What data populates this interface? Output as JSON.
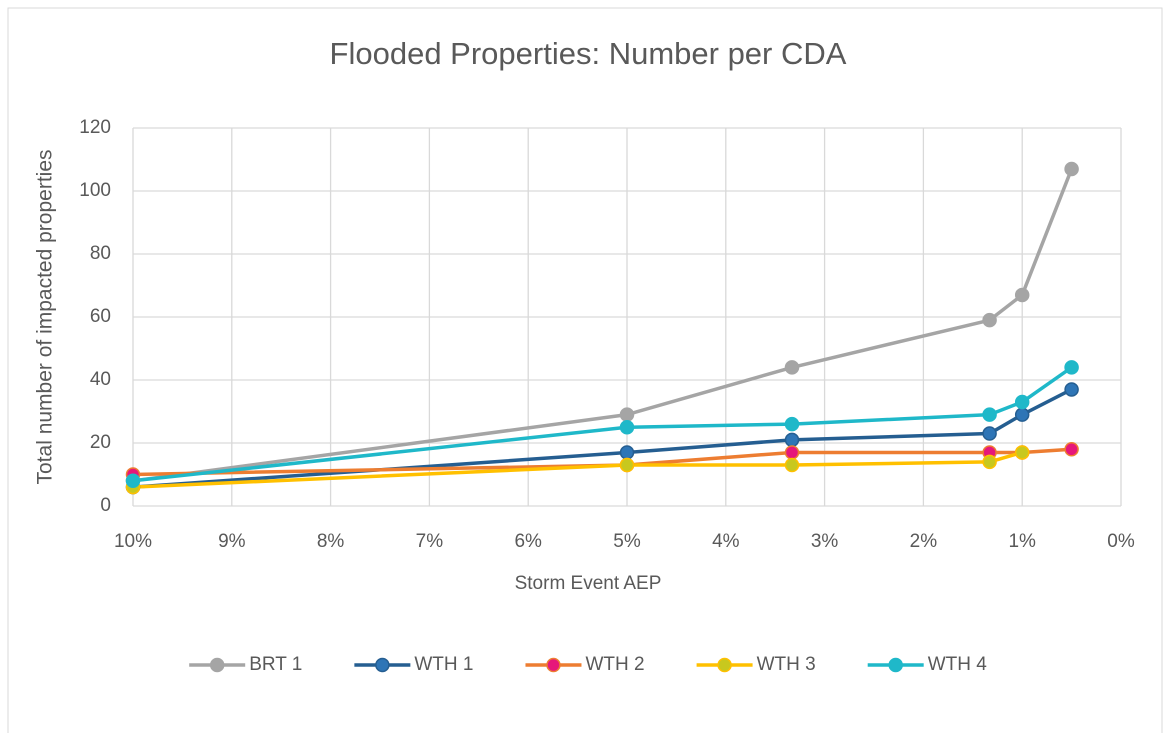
{
  "chart_data": {
    "type": "line",
    "title": "Flooded Properties: Number per CDA",
    "x_label": "Storm Event AEP",
    "y_label": "Total number of impacted properties",
    "x": [
      10,
      5,
      3.33,
      1.33,
      1,
      0.5
    ],
    "series": [
      {
        "name": "BRT 1",
        "color": "#a5a5a5",
        "marker_color": "#a5a5a5",
        "values": [
          8,
          29,
          44,
          59,
          67,
          107
        ]
      },
      {
        "name": "WTH 1",
        "color": "#255e91",
        "marker_color": "#2e75b6",
        "values": [
          6,
          17,
          21,
          23,
          29,
          37
        ]
      },
      {
        "name": "WTH 2",
        "color": "#ed7d31",
        "marker_color": "#e6177a",
        "values": [
          10,
          13,
          17,
          17,
          17,
          18
        ]
      },
      {
        "name": "WTH 3",
        "color": "#ffc000",
        "marker_color": "#c8c81e",
        "values": [
          6,
          13,
          13,
          14,
          17,
          null
        ]
      },
      {
        "name": "WTH 4",
        "color": "#1fb8c9",
        "marker_color": "#1fb8c9",
        "values": [
          8,
          25,
          26,
          29,
          33,
          44
        ]
      }
    ],
    "xlim": [
      10,
      0
    ],
    "xticks": [
      {
        "value": 10,
        "label": "10%"
      },
      {
        "value": 9,
        "label": "9%"
      },
      {
        "value": 8,
        "label": "8%"
      },
      {
        "value": 7,
        "label": "7%"
      },
      {
        "value": 6,
        "label": "6%"
      },
      {
        "value": 5,
        "label": "5%"
      },
      {
        "value": 4,
        "label": "4%"
      },
      {
        "value": 3,
        "label": "3%"
      },
      {
        "value": 2,
        "label": "2%"
      },
      {
        "value": 1,
        "label": "1%"
      },
      {
        "value": 0,
        "label": "0%"
      }
    ],
    "ylim": [
      0,
      120
    ],
    "yticks": [
      0,
      20,
      40,
      60,
      80,
      100,
      120
    ],
    "grid": true,
    "legend": "bottom"
  }
}
